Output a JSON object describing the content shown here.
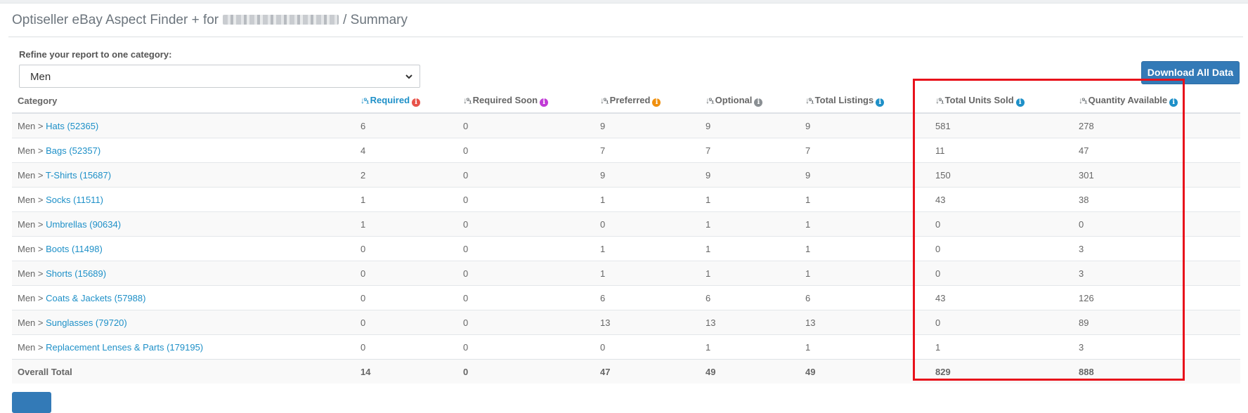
{
  "header": {
    "title_prefix": "Optiseller eBay Aspect Finder + for",
    "title_suffix": "/ Summary"
  },
  "filter": {
    "label": "Refine your report to one category:",
    "selected": "Men"
  },
  "download_label": "Download All Data",
  "columns": [
    {
      "label": "Category",
      "sort": false,
      "info": null,
      "highlight": false
    },
    {
      "label": "Required",
      "sort": true,
      "info": "#e8534a",
      "highlight": true
    },
    {
      "label": "Required Soon",
      "sort": true,
      "info": "#c13ad6",
      "highlight": false
    },
    {
      "label": "Preferred",
      "sort": true,
      "info": "#f0900e",
      "highlight": false
    },
    {
      "label": "Optional",
      "sort": true,
      "info": "#8a8f93",
      "highlight": false
    },
    {
      "label": "Total Listings",
      "sort": true,
      "info": "#1e90c8",
      "highlight": false
    },
    {
      "label": "Total Units Sold",
      "sort": true,
      "info": "#1e90c8",
      "highlight": false
    },
    {
      "label": "Quantity Available",
      "sort": true,
      "info": "#1e90c8",
      "highlight": false
    }
  ],
  "rows": [
    {
      "prefix": "Men > ",
      "category": "Hats (52365)",
      "values": [
        "6",
        "0",
        "9",
        "9",
        "9",
        "581",
        "278"
      ]
    },
    {
      "prefix": "Men > ",
      "category": "Bags (52357)",
      "values": [
        "4",
        "0",
        "7",
        "7",
        "7",
        "11",
        "47"
      ]
    },
    {
      "prefix": "Men > ",
      "category": "T-Shirts (15687)",
      "values": [
        "2",
        "0",
        "9",
        "9",
        "9",
        "150",
        "301"
      ]
    },
    {
      "prefix": "Men > ",
      "category": "Socks (11511)",
      "values": [
        "1",
        "0",
        "1",
        "1",
        "1",
        "43",
        "38"
      ]
    },
    {
      "prefix": "Men > ",
      "category": "Umbrellas (90634)",
      "values": [
        "1",
        "0",
        "0",
        "1",
        "1",
        "0",
        "0"
      ]
    },
    {
      "prefix": "Men > ",
      "category": "Boots (11498)",
      "values": [
        "0",
        "0",
        "1",
        "1",
        "1",
        "0",
        "3"
      ]
    },
    {
      "prefix": "Men > ",
      "category": "Shorts (15689)",
      "values": [
        "0",
        "0",
        "1",
        "1",
        "1",
        "0",
        "3"
      ]
    },
    {
      "prefix": "Men > ",
      "category": "Coats & Jackets (57988)",
      "values": [
        "0",
        "0",
        "6",
        "6",
        "6",
        "43",
        "126"
      ]
    },
    {
      "prefix": "Men > ",
      "category": "Sunglasses (79720)",
      "values": [
        "0",
        "0",
        "13",
        "13",
        "13",
        "0",
        "89"
      ]
    },
    {
      "prefix": "Men > ",
      "category": "Replacement Lenses & Parts (179195)",
      "values": [
        "0",
        "0",
        "0",
        "1",
        "1",
        "1",
        "3"
      ]
    }
  ],
  "total": {
    "label": "Overall Total",
    "values": [
      "14",
      "0",
      "47",
      "49",
      "49",
      "829",
      "888"
    ]
  },
  "icons": {
    "sort": "sort-icon",
    "info": "info-icon",
    "dropdown": "chevron-down-icon"
  }
}
